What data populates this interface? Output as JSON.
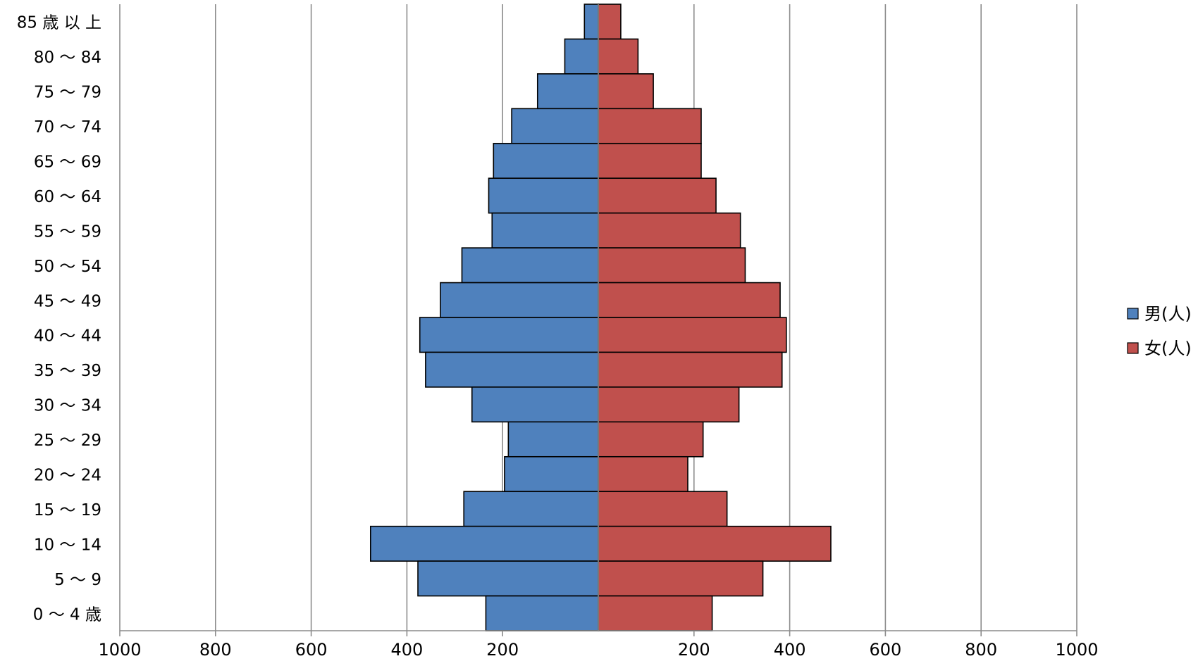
{
  "chart_data": {
    "type": "bar",
    "orientation": "horizontal-population-pyramid",
    "categories": [
      "85 歳  以 上",
      "80 〜 84",
      "75 〜 79",
      "70 〜 74",
      "65 〜 69",
      "60 〜 64",
      "55 〜 59",
      "50 〜 54",
      "45 〜 49",
      "40 〜 44",
      "35 〜 39",
      "30 〜 34",
      "25 〜 29",
      "20 〜 24",
      "15 〜 19",
      "10 〜 14",
      "5 〜 9",
      "0 〜 4 歳"
    ],
    "series": [
      {
        "name": "男(人)",
        "color": "#4F81BD",
        "values": [
          29,
          70,
          127,
          181,
          219,
          229,
          222,
          285,
          330,
          373,
          361,
          264,
          188,
          196,
          281,
          476,
          377,
          235
        ]
      },
      {
        "name": "女(人)",
        "color": "#C0504D",
        "values": [
          47,
          83,
          115,
          215,
          215,
          246,
          297,
          307,
          380,
          393,
          384,
          294,
          219,
          187,
          269,
          486,
          344,
          238
        ]
      }
    ],
    "xlim": [
      -1000,
      1000
    ],
    "x_ticks": [
      -1000,
      -800,
      -600,
      -400,
      -200,
      200,
      400,
      600,
      800,
      1000
    ],
    "x_tick_labels": [
      "1000",
      "800",
      "600",
      "400",
      "200",
      "200",
      "400",
      "600",
      "800",
      "1000"
    ],
    "grid": true,
    "legend_position": "right"
  }
}
